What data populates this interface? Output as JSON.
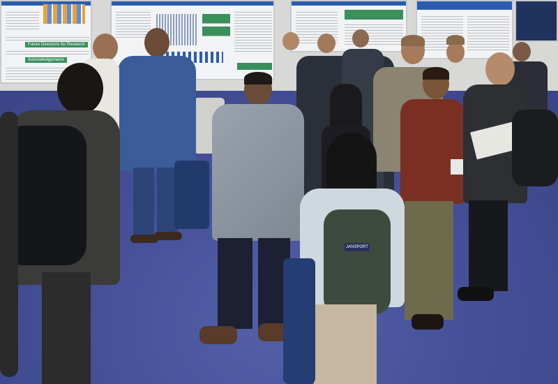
{
  "scene": {
    "description_label": "poster session",
    "posters": [
      {
        "lines": [
          "Future Directions for Research",
          "Acknowledgements"
        ]
      },
      {
        "lines": []
      },
      {
        "lines": []
      },
      {
        "lines": []
      }
    ],
    "backpack_brand": "JANSPORT"
  },
  "colors": {
    "floor": "#46519a",
    "wall": "#d8d9d6",
    "poster_accent": "#2a5db0",
    "suit_blue": "#2f4f8a",
    "jacket_gray": "#8e95a0"
  }
}
